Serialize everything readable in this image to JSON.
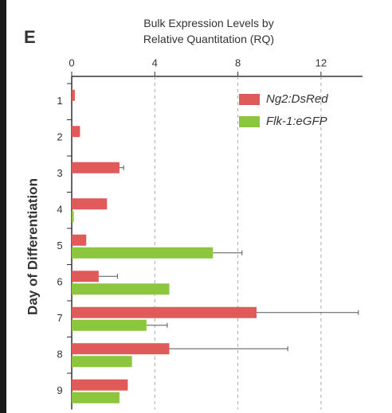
{
  "panel_label": "E",
  "chart_data": {
    "type": "hbar",
    "title": "Bulk Expression Levels by Relative Quantitation (RQ)",
    "y_label": "Day of Differentiation",
    "categories": [
      "1",
      "2",
      "3",
      "4",
      "5",
      "6",
      "7",
      "8",
      "9"
    ],
    "series": [
      {
        "name": "Ng2:DsRed",
        "color": "#e05a5a",
        "values": [
          0.15,
          0.4,
          2.3,
          1.7,
          0.7,
          1.3,
          8.9,
          4.7,
          2.7
        ],
        "errors": [
          null,
          null,
          0.2,
          null,
          null,
          0.9,
          4.9,
          5.7,
          null
        ]
      },
      {
        "name": "Flk-1:eGFP",
        "color": "#8cc63f",
        "values": [
          null,
          null,
          null,
          0.1,
          6.8,
          4.7,
          3.6,
          2.9,
          2.3
        ],
        "errors": [
          null,
          null,
          null,
          null,
          1.4,
          null,
          1.0,
          null,
          null
        ]
      }
    ],
    "xlim": [
      0,
      14
    ],
    "xticks": [
      0,
      4,
      8,
      12
    ],
    "grid": true,
    "legend": "top-right"
  }
}
